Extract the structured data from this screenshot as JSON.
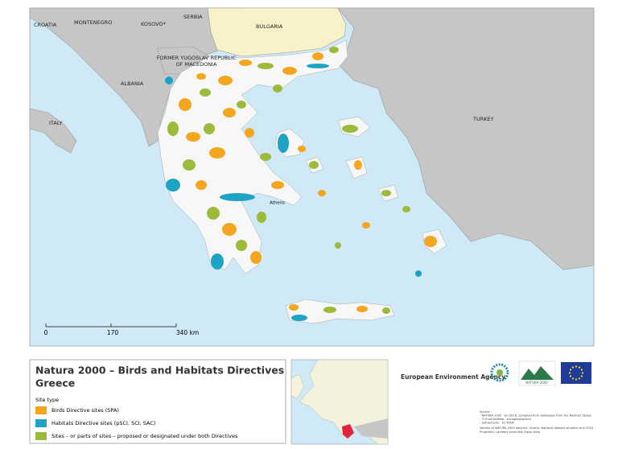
{
  "map": {
    "countries": {
      "croatia": "CROATIA",
      "montenegro": "MONTENEGRO",
      "serbia": "SERBIA",
      "kosovo": "KOSOVO*",
      "bulgaria": "BULGARIA",
      "macedonia": [
        "FORMER YUGOSLAV REPUBLIC",
        "OF MACEDONIA"
      ],
      "albania": "ALBANIA",
      "italy": "ITALY",
      "turkey": "TURKEY"
    },
    "city": "Athens",
    "scale": [
      "0",
      "170",
      "340 km"
    ]
  },
  "panel": {
    "title": "Natura 2000 – Birds and Habitats Directives",
    "subtitle": "Greece",
    "legend": {
      "heading": "Site type",
      "items": [
        {
          "label": "Birds Directive sites (SPA)",
          "color": "#f4a620"
        },
        {
          "label": "Habitats Directive sites (pSCI, SCI, SAC)",
          "color": "#1da4c4"
        },
        {
          "label": "Sites – or parts of sites – proposed or designated under both Directives",
          "color": "#9dbb3a"
        }
      ]
    }
  },
  "agency": "European Environment Agency",
  "natura_logo": "NATURA 2000",
  "source": [
    "Source :",
    "- NATURA 2000 - EU 2016, compiled from databases from the Member States",
    "- © EuroGeoMap - eurogeographics",
    "- Settlements - EU RTDP",
    "Validity of NATURA 2000 data for: Greece. National dataset situation end 2016",
    "Projection: Lambert Azimuthal Equal Area"
  ]
}
